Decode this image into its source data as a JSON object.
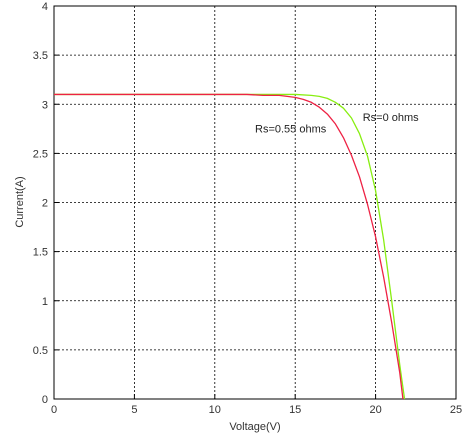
{
  "chart_data": {
    "type": "line",
    "title": "",
    "xlabel": "Voltage(V)",
    "ylabel": "Current(A)",
    "xlim": [
      0,
      25
    ],
    "ylim": [
      0,
      4
    ],
    "x_ticks": [
      0,
      5,
      10,
      15,
      20,
      25
    ],
    "y_ticks": [
      0,
      0.5,
      1,
      1.5,
      2,
      2.5,
      3,
      3.5,
      4
    ],
    "grid": true,
    "grid_style": "dashed",
    "series": [
      {
        "name": "Rs=0 ohms",
        "color": "#88ee11",
        "x": [
          0,
          2,
          4,
          6,
          8,
          10,
          12,
          14,
          15,
          16,
          16.5,
          17,
          17.5,
          18,
          18.5,
          19,
          19.5,
          20,
          20.5,
          21,
          21.5,
          21.8
        ],
        "y": [
          3.1,
          3.1,
          3.1,
          3.1,
          3.1,
          3.1,
          3.1,
          3.1,
          3.1,
          3.09,
          3.08,
          3.06,
          3.02,
          2.96,
          2.86,
          2.7,
          2.47,
          2.12,
          1.62,
          1.0,
          0.35,
          0.0
        ]
      },
      {
        "name": "Rs=0.55 ohms",
        "color": "#ee2244",
        "x": [
          0,
          2,
          4,
          6,
          8,
          10,
          12,
          13,
          14,
          14.5,
          15,
          15.5,
          16,
          16.5,
          17,
          17.5,
          18,
          18.5,
          19,
          19.5,
          20,
          20.5,
          21,
          21.5,
          21.7
        ],
        "y": [
          3.1,
          3.1,
          3.1,
          3.1,
          3.1,
          3.1,
          3.1,
          3.09,
          3.09,
          3.08,
          3.07,
          3.05,
          3.02,
          2.97,
          2.9,
          2.8,
          2.66,
          2.48,
          2.26,
          1.98,
          1.65,
          1.24,
          0.78,
          0.27,
          0.0
        ]
      }
    ],
    "annotations": [
      {
        "text": "Rs=0 ohms",
        "x": 19.2,
        "y": 2.83
      },
      {
        "text": "Rs=0.55 ohms",
        "x": 12.5,
        "y": 2.71
      }
    ]
  }
}
